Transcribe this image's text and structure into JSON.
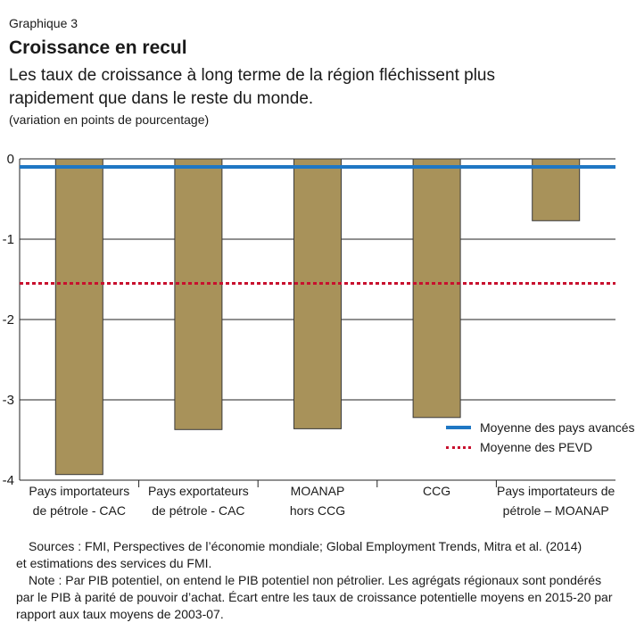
{
  "header": {
    "label": "Graphique 3",
    "title": "Croissance en recul",
    "subtitle": "Les taux de croissance à long terme de la région fléchissent plus rapidement que dans le reste du monde.",
    "unit": "(variation en points de pourcentage)"
  },
  "chart_data": {
    "type": "bar",
    "categories": [
      [
        "Pays importateurs",
        "de pétrole - CAC"
      ],
      [
        "Pays exportateurs",
        "de pétrole - CAC"
      ],
      [
        "MOANAP",
        "hors CCG"
      ],
      [
        "CCG"
      ],
      [
        "Pays importateurs de",
        "pétrole – MOANAP"
      ]
    ],
    "values": [
      -3.93,
      -3.37,
      -3.36,
      -3.22,
      -0.77
    ],
    "ylim": [
      -4,
      0
    ],
    "yticks": [
      "0",
      "-1",
      "-2",
      "-3",
      "-4"
    ],
    "bar_color": "#a8925a",
    "reference_lines": [
      {
        "name": "Moyenne des pays avancés",
        "value": -0.1,
        "color": "#1f77c4",
        "style": "solid"
      },
      {
        "name": "Moyenne des PEVD",
        "value": -1.55,
        "color": "#c8102e",
        "style": "dotted"
      }
    ],
    "legend_position": "bottom-right"
  },
  "legend": {
    "items": [
      "Moyenne des pays avancés",
      "Moyenne des PEVD"
    ]
  },
  "footer": {
    "sources_1": "Sources : FMI, Perspectives de l’économie mondiale; Global Employment Trends, Mitra et al. (2014)",
    "sources_2": "et estimations des services du FMI.",
    "note": "Note : Par PIB potentiel, on entend le PIB potentiel non pétrolier. Les agrégats régionaux sont pondérés par le PIB à parité de pouvoir d’achat. Écart entre les taux de croissance potentielle moyens en 2015-20 par rapport aux taux moyens de 2003-07."
  }
}
